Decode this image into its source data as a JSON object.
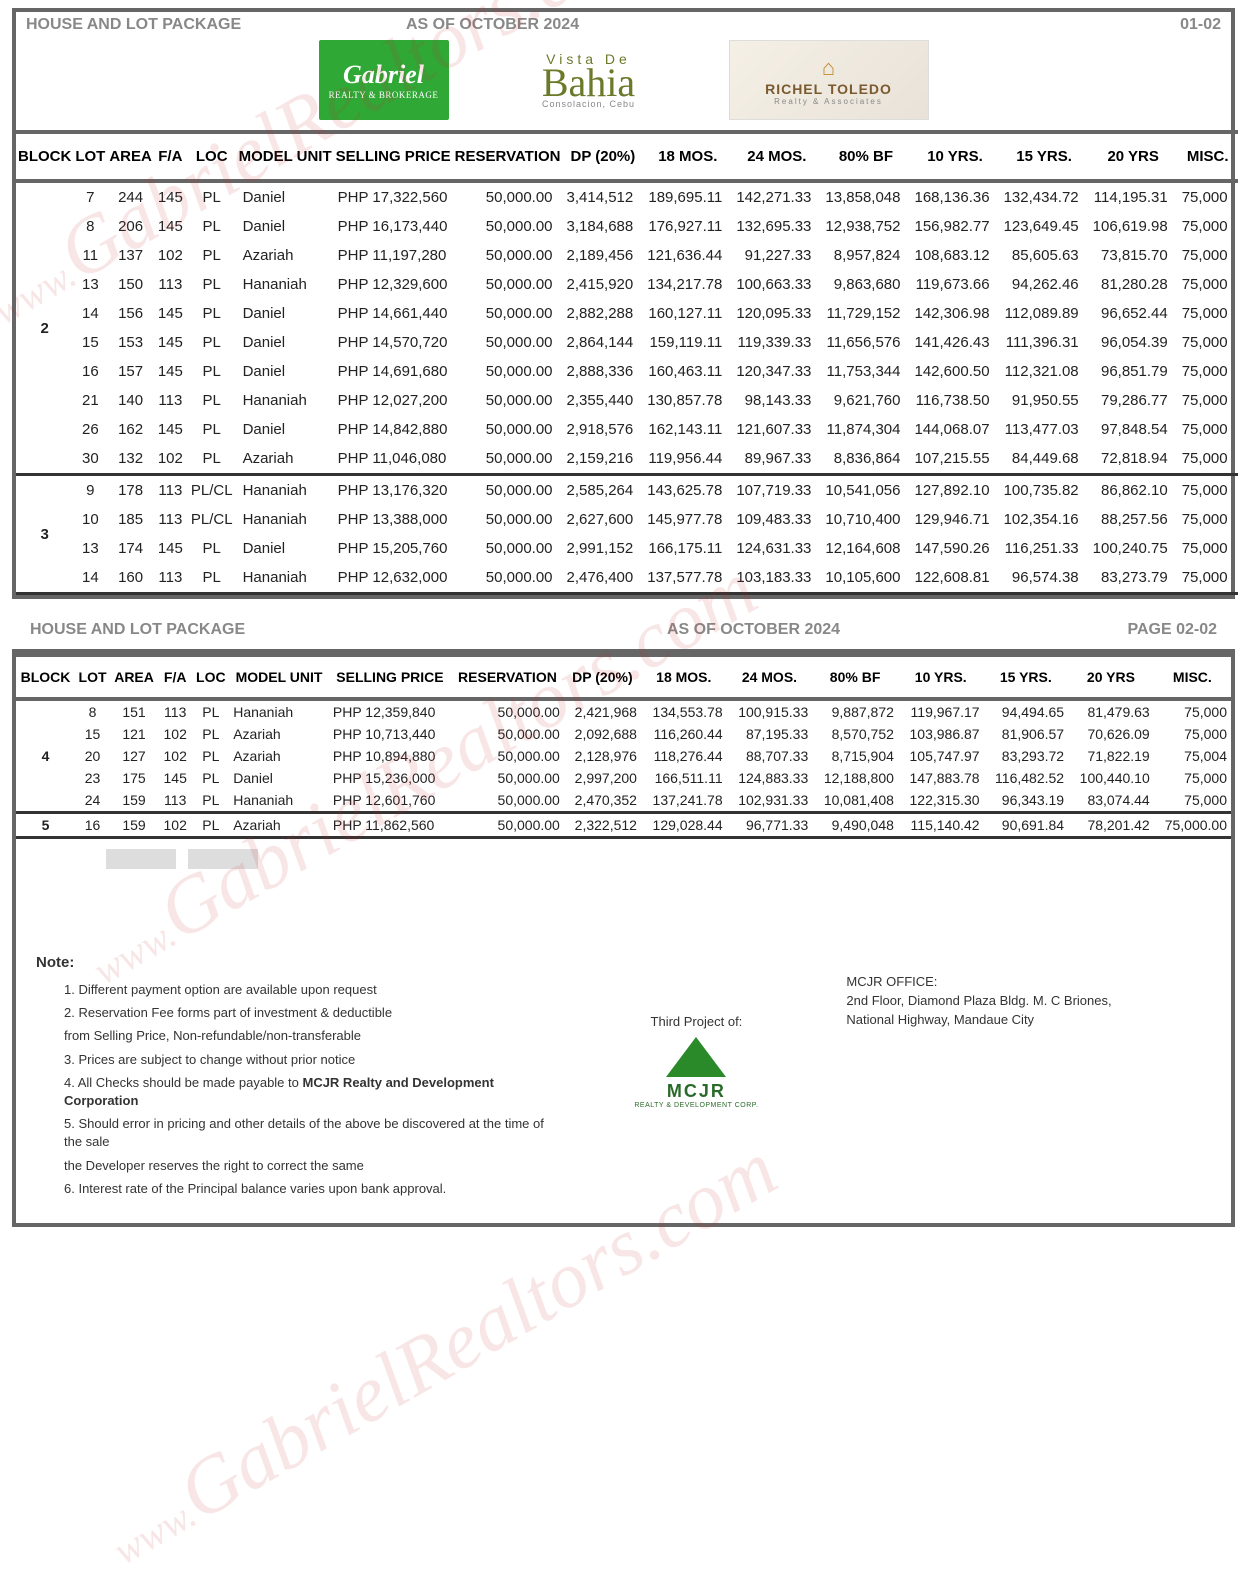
{
  "header": {
    "title": "HOUSE AND LOT PACKAGE",
    "asof": "AS OF OCTOBER 2024",
    "page1": "01-02",
    "page2": "PAGE 02-02"
  },
  "logos": {
    "gabriel_main": "Gabriel",
    "gabriel_sub": "REALTY & BROKERAGE",
    "vista_t1": "Vista De",
    "vista_t2": "Bahia",
    "vista_t3": "Consolacion, Cebu",
    "richel_t1": "RICHEL TOLEDO",
    "richel_t2": "Realty & Associates"
  },
  "columns": [
    "BLOCK",
    "LOT",
    "AREA",
    "F/A",
    "LOC",
    "MODEL UNIT",
    "SELLING PRICE",
    "RESERVATION",
    "DP (20%)",
    "18 MOS.",
    "24 MOS.",
    "80% BF",
    "10 YRS.",
    "15 YRS.",
    "20 YRS",
    "MISC."
  ],
  "table1_blocks": [
    {
      "block": "2",
      "rows": [
        {
          "lot": "7",
          "area": "244",
          "fa": "145",
          "loc": "PL",
          "model": "Daniel",
          "price": "PHP 17,322,560",
          "res": "50,000.00",
          "dp": "3,414,512",
          "m18": "189,695.11",
          "m24": "142,271.33",
          "bf": "13,858,048",
          "y10": "168,136.36",
          "y15": "132,434.72",
          "y20": "114,195.31",
          "misc": "75,000"
        },
        {
          "lot": "8",
          "area": "206",
          "fa": "145",
          "loc": "PL",
          "model": "Daniel",
          "price": "PHP 16,173,440",
          "res": "50,000.00",
          "dp": "3,184,688",
          "m18": "176,927.11",
          "m24": "132,695.33",
          "bf": "12,938,752",
          "y10": "156,982.77",
          "y15": "123,649.45",
          "y20": "106,619.98",
          "misc": "75,000"
        },
        {
          "lot": "11",
          "area": "137",
          "fa": "102",
          "loc": "PL",
          "model": "Azariah",
          "price": "PHP 11,197,280",
          "res": "50,000.00",
          "dp": "2,189,456",
          "m18": "121,636.44",
          "m24": "91,227.33",
          "bf": "8,957,824",
          "y10": "108,683.12",
          "y15": "85,605.63",
          "y20": "73,815.70",
          "misc": "75,000"
        },
        {
          "lot": "13",
          "area": "150",
          "fa": "113",
          "loc": "PL",
          "model": "Hananiah",
          "price": "PHP 12,329,600",
          "res": "50,000.00",
          "dp": "2,415,920",
          "m18": "134,217.78",
          "m24": "100,663.33",
          "bf": "9,863,680",
          "y10": "119,673.66",
          "y15": "94,262.46",
          "y20": "81,280.28",
          "misc": "75,000"
        },
        {
          "lot": "14",
          "area": "156",
          "fa": "145",
          "loc": "PL",
          "model": "Daniel",
          "price": "PHP 14,661,440",
          "res": "50,000.00",
          "dp": "2,882,288",
          "m18": "160,127.11",
          "m24": "120,095.33",
          "bf": "11,729,152",
          "y10": "142,306.98",
          "y15": "112,089.89",
          "y20": "96,652.44",
          "misc": "75,000"
        },
        {
          "lot": "15",
          "area": "153",
          "fa": "145",
          "loc": "PL",
          "model": "Daniel",
          "price": "PHP 14,570,720",
          "res": "50,000.00",
          "dp": "2,864,144",
          "m18": "159,119.11",
          "m24": "119,339.33",
          "bf": "11,656,576",
          "y10": "141,426.43",
          "y15": "111,396.31",
          "y20": "96,054.39",
          "misc": "75,000"
        },
        {
          "lot": "16",
          "area": "157",
          "fa": "145",
          "loc": "PL",
          "model": "Daniel",
          "price": "PHP 14,691,680",
          "res": "50,000.00",
          "dp": "2,888,336",
          "m18": "160,463.11",
          "m24": "120,347.33",
          "bf": "11,753,344",
          "y10": "142,600.50",
          "y15": "112,321.08",
          "y20": "96,851.79",
          "misc": "75,000"
        },
        {
          "lot": "21",
          "area": "140",
          "fa": "113",
          "loc": "PL",
          "model": "Hananiah",
          "price": "PHP 12,027,200",
          "res": "50,000.00",
          "dp": "2,355,440",
          "m18": "130,857.78",
          "m24": "98,143.33",
          "bf": "9,621,760",
          "y10": "116,738.50",
          "y15": "91,950.55",
          "y20": "79,286.77",
          "misc": "75,000"
        },
        {
          "lot": "26",
          "area": "162",
          "fa": "145",
          "loc": "PL",
          "model": "Daniel",
          "price": "PHP 14,842,880",
          "res": "50,000.00",
          "dp": "2,918,576",
          "m18": "162,143.11",
          "m24": "121,607.33",
          "bf": "11,874,304",
          "y10": "144,068.07",
          "y15": "113,477.03",
          "y20": "97,848.54",
          "misc": "75,000"
        },
        {
          "lot": "30",
          "area": "132",
          "fa": "102",
          "loc": "PL",
          "model": "Azariah",
          "price": "PHP 11,046,080",
          "res": "50,000.00",
          "dp": "2,159,216",
          "m18": "119,956.44",
          "m24": "89,967.33",
          "bf": "8,836,864",
          "y10": "107,215.55",
          "y15": "84,449.68",
          "y20": "72,818.94",
          "misc": "75,000"
        }
      ]
    },
    {
      "block": "3",
      "rows": [
        {
          "lot": "9",
          "area": "178",
          "fa": "113",
          "loc": "PL/CL",
          "model": "Hananiah",
          "price": "PHP 13,176,320",
          "res": "50,000.00",
          "dp": "2,585,264",
          "m18": "143,625.78",
          "m24": "107,719.33",
          "bf": "10,541,056",
          "y10": "127,892.10",
          "y15": "100,735.82",
          "y20": "86,862.10",
          "misc": "75,000"
        },
        {
          "lot": "10",
          "area": "185",
          "fa": "113",
          "loc": "PL/CL",
          "model": "Hananiah",
          "price": "PHP 13,388,000",
          "res": "50,000.00",
          "dp": "2,627,600",
          "m18": "145,977.78",
          "m24": "109,483.33",
          "bf": "10,710,400",
          "y10": "129,946.71",
          "y15": "102,354.16",
          "y20": "88,257.56",
          "misc": "75,000"
        },
        {
          "lot": "13",
          "area": "174",
          "fa": "145",
          "loc": "PL",
          "model": "Daniel",
          "price": "PHP 15,205,760",
          "res": "50,000.00",
          "dp": "2,991,152",
          "m18": "166,175.11",
          "m24": "124,631.33",
          "bf": "12,164,608",
          "y10": "147,590.26",
          "y15": "116,251.33",
          "y20": "100,240.75",
          "misc": "75,000"
        },
        {
          "lot": "14",
          "area": "160",
          "fa": "113",
          "loc": "PL",
          "model": "Hananiah",
          "price": "PHP 12,632,000",
          "res": "50,000.00",
          "dp": "2,476,400",
          "m18": "137,577.78",
          "m24": "103,183.33",
          "bf": "10,105,600",
          "y10": "122,608.81",
          "y15": "96,574.38",
          "y20": "83,273.79",
          "misc": "75,000"
        }
      ]
    }
  ],
  "table2_blocks": [
    {
      "block": "4",
      "rows": [
        {
          "lot": "8",
          "area": "151",
          "fa": "113",
          "loc": "PL",
          "model": "Hananiah",
          "price": "PHP 12,359,840",
          "res": "50,000.00",
          "dp": "2,421,968",
          "m18": "134,553.78",
          "m24": "100,915.33",
          "bf": "9,887,872",
          "y10": "119,967.17",
          "y15": "94,494.65",
          "y20": "81,479.63",
          "misc": "75,000"
        },
        {
          "lot": "15",
          "area": "121",
          "fa": "102",
          "loc": "PL",
          "model": "Azariah",
          "price": "PHP 10,713,440",
          "res": "50,000.00",
          "dp": "2,092,688",
          "m18": "116,260.44",
          "m24": "87,195.33",
          "bf": "8,570,752",
          "y10": "103,986.87",
          "y15": "81,906.57",
          "y20": "70,626.09",
          "misc": "75,000"
        },
        {
          "lot": "20",
          "area": "127",
          "fa": "102",
          "loc": "PL",
          "model": "Azariah",
          "price": "PHP 10,894,880",
          "res": "50,000.00",
          "dp": "2,128,976",
          "m18": "118,276.44",
          "m24": "88,707.33",
          "bf": "8,715,904",
          "y10": "105,747.97",
          "y15": "83,293.72",
          "y20": "71,822.19",
          "misc": "75,004"
        },
        {
          "lot": "23",
          "area": "175",
          "fa": "145",
          "loc": "PL",
          "model": "Daniel",
          "price": "PHP 15,236,000",
          "res": "50,000.00",
          "dp": "2,997,200",
          "m18": "166,511.11",
          "m24": "124,883.33",
          "bf": "12,188,800",
          "y10": "147,883.78",
          "y15": "116,482.52",
          "y20": "100,440.10",
          "misc": "75,000"
        },
        {
          "lot": "24",
          "area": "159",
          "fa": "113",
          "loc": "PL",
          "model": "Hananiah",
          "price": "PHP 12,601,760",
          "res": "50,000.00",
          "dp": "2,470,352",
          "m18": "137,241.78",
          "m24": "102,931.33",
          "bf": "10,081,408",
          "y10": "122,315.30",
          "y15": "96,343.19",
          "y20": "83,074.44",
          "misc": "75,000"
        }
      ]
    },
    {
      "block": "5",
      "rows": [
        {
          "lot": "16",
          "area": "159",
          "fa": "102",
          "loc": "PL",
          "model": "Azariah",
          "price": "PHP 11,862,560",
          "res": "50,000.00",
          "dp": "2,322,512",
          "m18": "129,028.44",
          "m24": "96,771.33",
          "bf": "9,490,048",
          "y10": "115,140.42",
          "y15": "90,691.84",
          "y20": "78,201.42",
          "misc": "75,000.00"
        }
      ]
    }
  ],
  "notes": {
    "title": "Note:",
    "items": [
      "1.  Different payment option are available upon request",
      "2.  Reservation Fee forms part of investment & deductible",
      "from Selling Price, Non-refundable/non-transferable",
      "3.  Prices are subject to change without prior notice",
      "4.  All Checks should be made payable to MCJR Realty and Development Corporation",
      "5.  Should error in pricing and other details of the above be discovered at the time of the sale",
      "the Developer reserves the right to correct the same",
      "6.  Interest rate of the Principal balance varies upon bank approval."
    ],
    "third": "Third Project of:",
    "mcjr": "MCJR",
    "mcjr_sub": "REALTY & DEVELOPMENT CORP.",
    "office_t": "MCJR OFFICE:",
    "office_a1": "2nd Floor, Diamond Plaza Bldg. M. C Briones,",
    "office_a2": "National Highway, Mandaue City"
  },
  "watermark": "GabrielRealtors.com",
  "watermark_prefix": "www."
}
